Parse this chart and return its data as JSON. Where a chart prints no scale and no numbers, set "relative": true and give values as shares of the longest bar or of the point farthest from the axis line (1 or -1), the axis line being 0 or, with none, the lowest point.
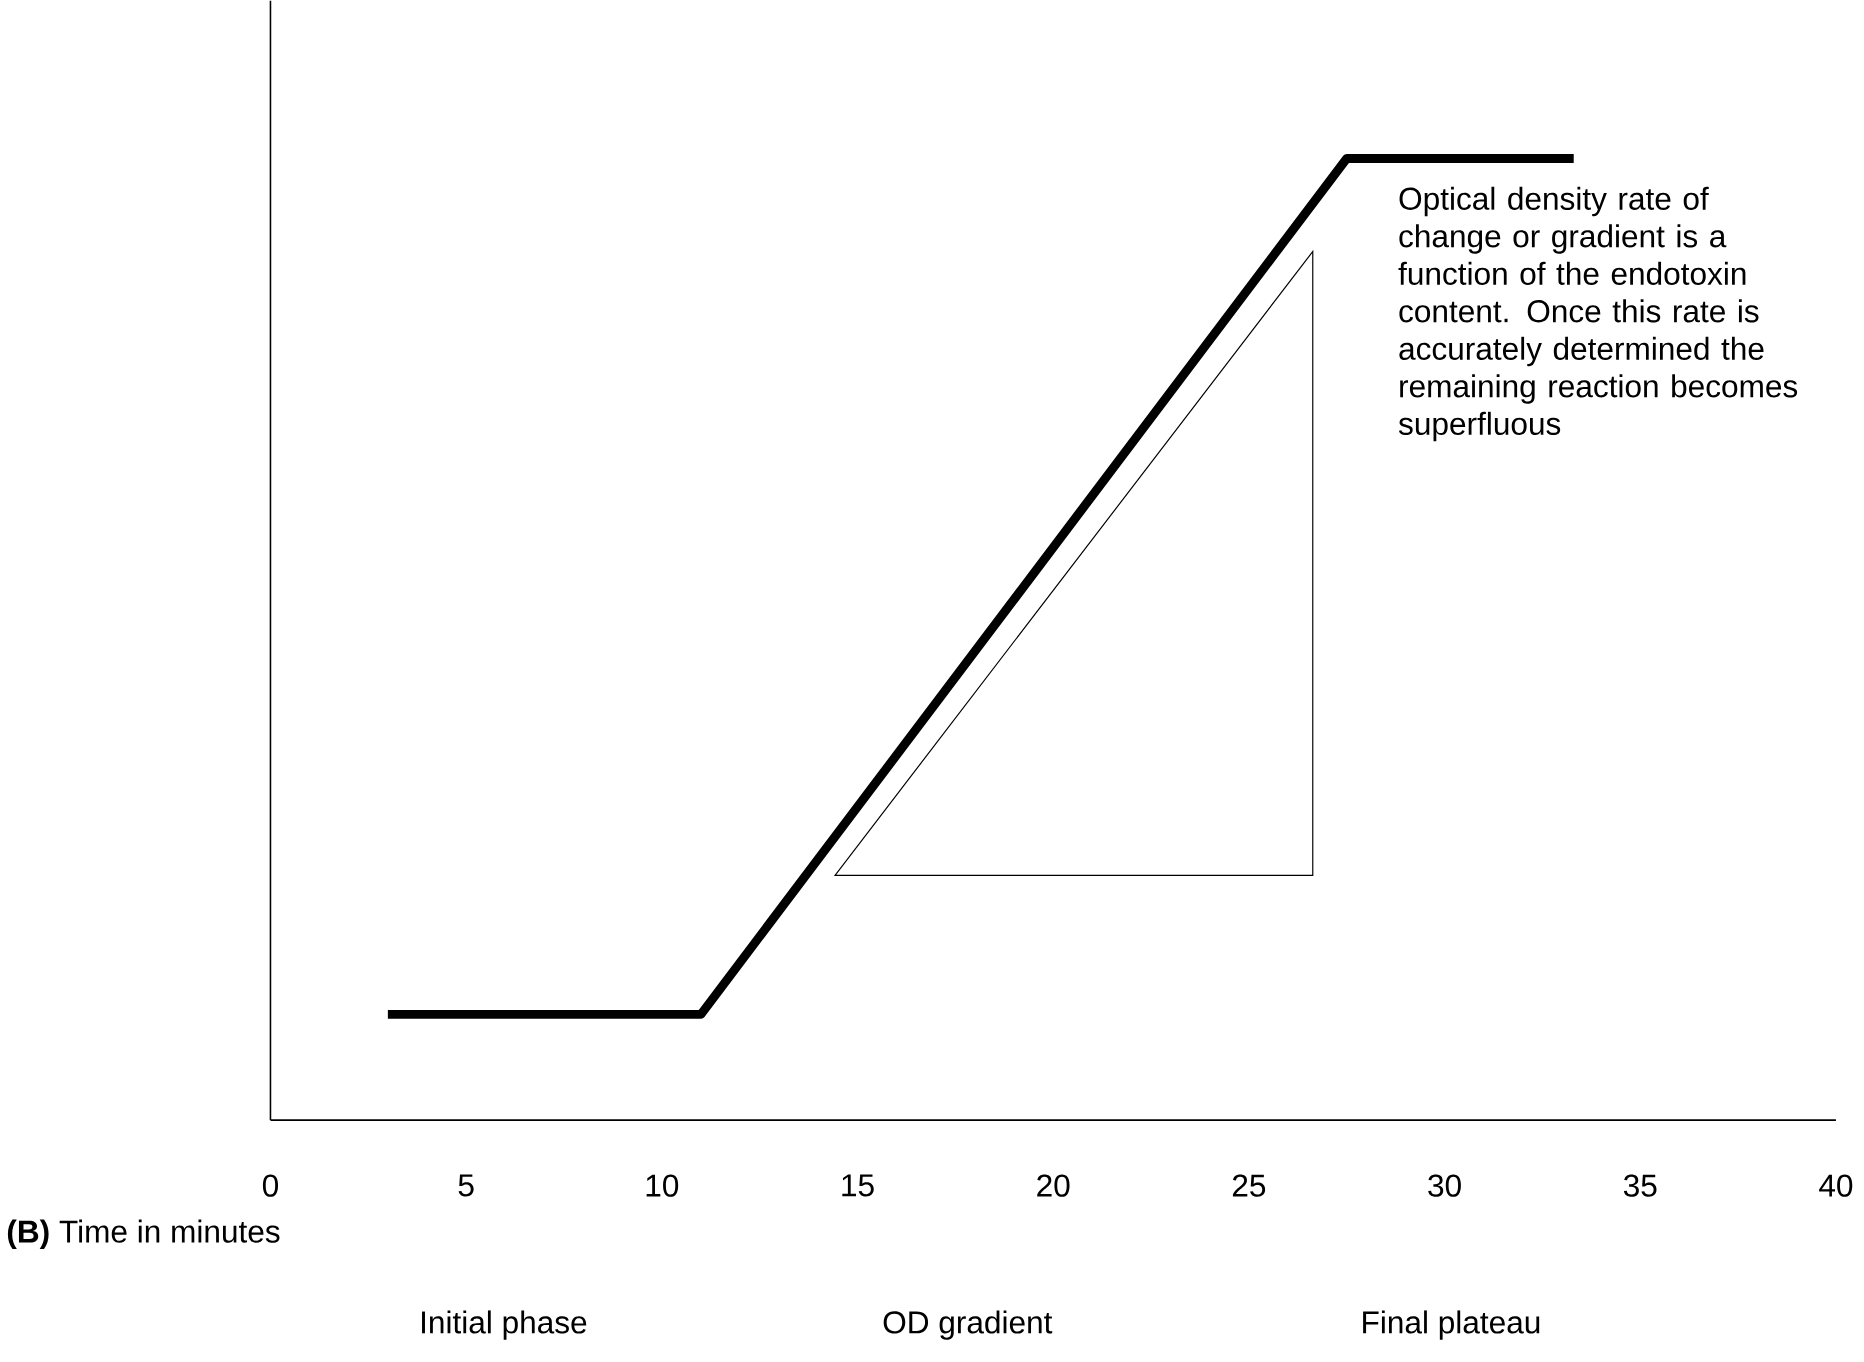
{
  "chart_data": {
    "type": "line",
    "relative": true,
    "xlabel": "**(B)** Time in minutes",
    "x": [
      3,
      11,
      27.5,
      33.3
    ],
    "series": [
      {
        "color": "#000000",
        "values": [
          0.11,
          0.11,
          1,
          1
        ]
      }
    ],
    "xlim": [
      0,
      40
    ],
    "xticks": [
      0,
      5,
      10,
      15,
      20,
      25,
      30,
      35,
      40
    ],
    "grid": false,
    "marker": "none",
    "line_style": "solid",
    "annotations": [
      "Optical density rate of change or gradient is a function of the endotoxin content. Once this rate is accurately determined the remaining reaction becomes superfluous",
      "Initial phase",
      "OD gradient",
      "Final plateau"
    ]
  }
}
